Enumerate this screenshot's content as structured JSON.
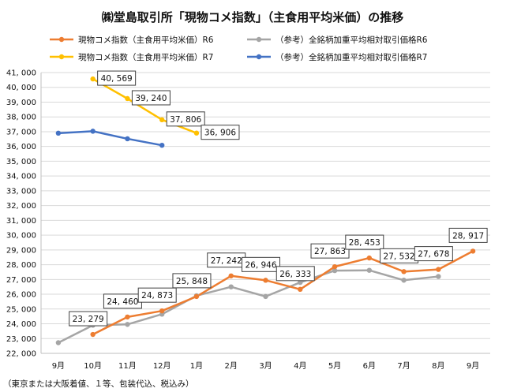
{
  "chart_data": {
    "type": "line",
    "title": "㈱堂島取引所「現物コメ指数」（主食用平均米価）の推移",
    "note": "（東京または大阪着値、１等、包装代込、税込み）",
    "categories": [
      "9月",
      "10月",
      "11月",
      "12月",
      "1月",
      "2月",
      "3月",
      "4月",
      "5月",
      "6月",
      "7月",
      "8月",
      "9月"
    ],
    "ylim": [
      22000,
      41000
    ],
    "ytick_step": 1000,
    "grid": true,
    "legend_position": "top",
    "series": [
      {
        "name": "現物コメ指数（主食用平均米価）R6",
        "color": "#ED7D31",
        "values": [
          null,
          23279,
          24460,
          24873,
          25848,
          27242,
          26946,
          26333,
          27863,
          28453,
          27532,
          27678,
          28917
        ],
        "labels": [
          false,
          true,
          true,
          true,
          true,
          true,
          true,
          true,
          true,
          true,
          true,
          true,
          true
        ]
      },
      {
        "name": "（参考）全銘柄加重平均相対取引価格R6",
        "color": "#A5A5A5",
        "values": [
          22720,
          23900,
          23960,
          24650,
          25900,
          26500,
          25850,
          26800,
          27600,
          27620,
          26950,
          27200,
          null
        ],
        "labels": [
          false,
          false,
          false,
          false,
          false,
          false,
          false,
          false,
          false,
          false,
          false,
          false,
          false
        ]
      },
      {
        "name": "現物コメ指数（主食用平均米価）R7",
        "color": "#FFC000",
        "values": [
          null,
          40569,
          39240,
          37806,
          36906,
          null,
          null,
          null,
          null,
          null,
          null,
          null,
          null
        ],
        "labels": [
          false,
          true,
          true,
          true,
          true,
          false,
          false,
          false,
          false,
          false,
          false,
          false,
          false
        ]
      },
      {
        "name": "（参考）全銘柄加重平均相対取引価格R7",
        "color": "#4472C4",
        "values": [
          36900,
          37030,
          36520,
          36080,
          null,
          null,
          null,
          null,
          null,
          null,
          null,
          null,
          null
        ],
        "labels": [
          false,
          false,
          false,
          false,
          false,
          false,
          false,
          false,
          false,
          false,
          false,
          false,
          false
        ]
      }
    ]
  }
}
